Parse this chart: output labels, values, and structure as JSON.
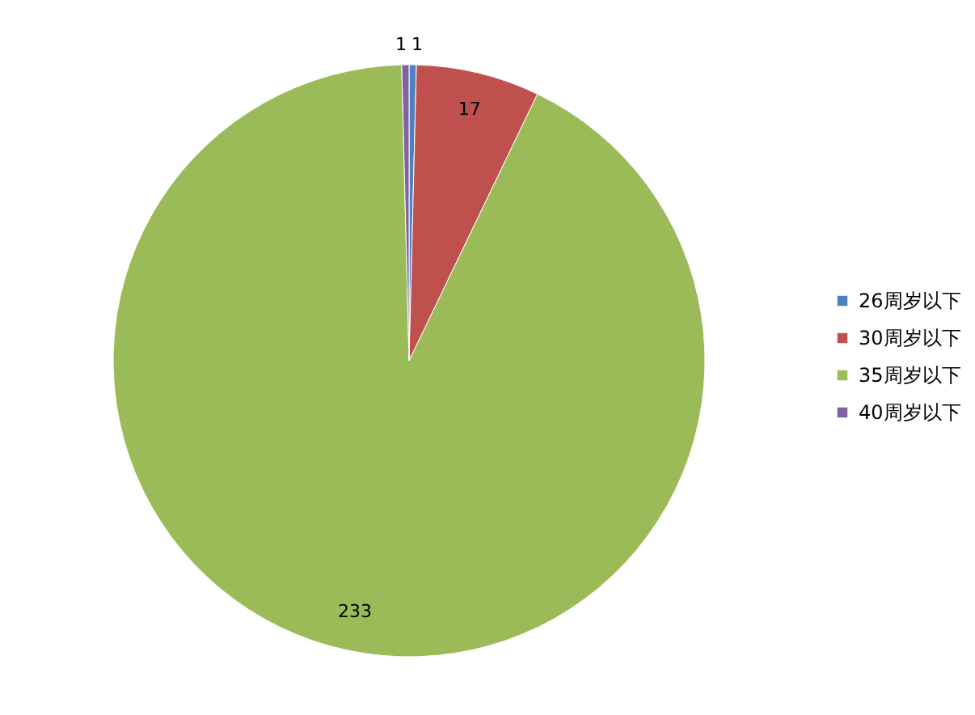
{
  "chart_data": {
    "type": "pie",
    "categories": [
      "26周岁以下",
      "30周岁以下",
      "35周岁以下",
      "40周岁以下"
    ],
    "values": [
      1,
      17,
      233,
      1
    ],
    "colors": [
      "#4f81bd",
      "#c0504d",
      "#9bbb59",
      "#8064a2"
    ],
    "data_labels": true,
    "legend": "right"
  }
}
